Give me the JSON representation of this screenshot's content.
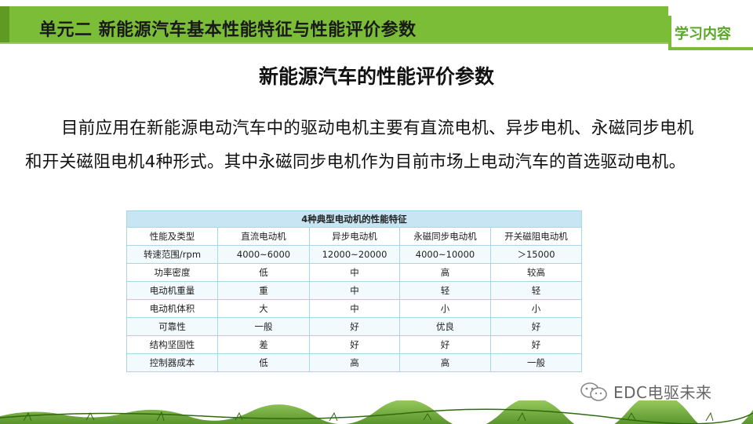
{
  "header": {
    "title": "单元二  新能源汽车基本性能特征与性能评价参数",
    "tag": "学习内容"
  },
  "section_title": "新能源汽车的性能评价参数",
  "paragraph": "目前应用在新能源电动汽车中的驱动电机主要有直流电机、异步电机、永磁同步电机和开关磁阻电机4种形式。其中永磁同步电机作为目前市场上电动汽车的首选驱动电机。",
  "table": {
    "caption": "4种典型电动机的性能特征",
    "columns": [
      "性能及类型",
      "直流电动机",
      "异步电动机",
      "永磁同步电动机",
      "开关磁阻电动机"
    ],
    "rows": [
      [
        "转速范围/rpm",
        "4000~6000",
        "12000~20000",
        "4000~10000",
        "＞15000"
      ],
      [
        "功率密度",
        "低",
        "中",
        "高",
        "较高"
      ],
      [
        "电动机重量",
        "重",
        "中",
        "轻",
        "轻"
      ],
      [
        "电动机体积",
        "大",
        "中",
        "小",
        "小"
      ],
      [
        "可靠性",
        "一般",
        "好",
        "优良",
        "好"
      ],
      [
        "结构坚固性",
        "差",
        "好",
        "好",
        "好"
      ],
      [
        "控制器成本",
        "低",
        "高",
        "高",
        "一般"
      ]
    ]
  },
  "watermark": {
    "text": "EDC电驱未来",
    "icon": "wechat-icon"
  },
  "colors": {
    "header_green": "#7cbd38",
    "tag_text": "#5aa626",
    "table_caption_bg": "#c7e5f3",
    "table_border": "#a9d5e8"
  }
}
